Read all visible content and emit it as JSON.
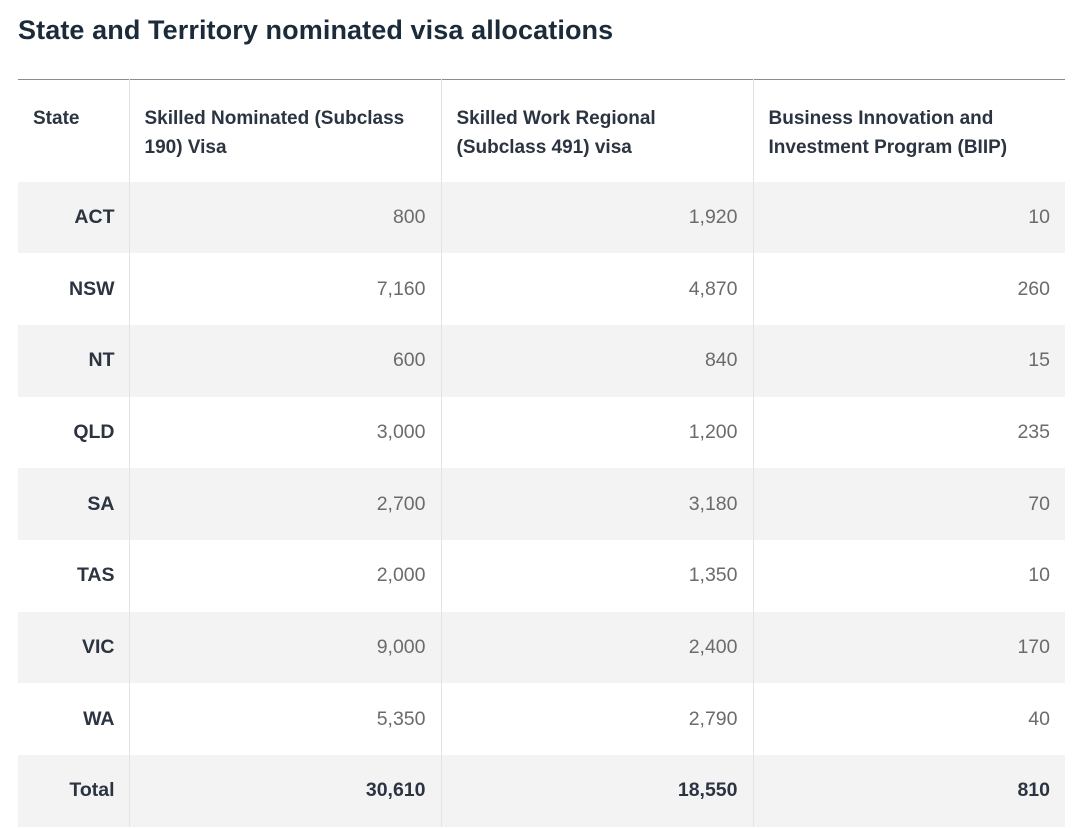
{
  "title": "State and Territory nominated visa allocations",
  "headers": [
    "State",
    "Skilled Nominated (Subclass 190) Visa",
    "Skilled Work Regional (Subclass 491) visa",
    "Business Innovation and Investment Program (BIIP)"
  ],
  "rows": [
    [
      "ACT",
      "800",
      "1,920",
      "10"
    ],
    [
      "NSW",
      "7,160",
      "4,870",
      "260"
    ],
    [
      "NT",
      "600",
      "840",
      "15"
    ],
    [
      "QLD",
      "3,000",
      "1,200",
      "235"
    ],
    [
      "SA",
      "2,700",
      "3,180",
      "70"
    ],
    [
      "TAS",
      "2,000",
      "1,350",
      "10"
    ],
    [
      "VIC",
      "9,000",
      "2,400",
      "170"
    ],
    [
      "WA",
      "5,350",
      "2,790",
      "40"
    ]
  ],
  "total": [
    "Total",
    "30,610",
    "18,550",
    "810"
  ]
}
